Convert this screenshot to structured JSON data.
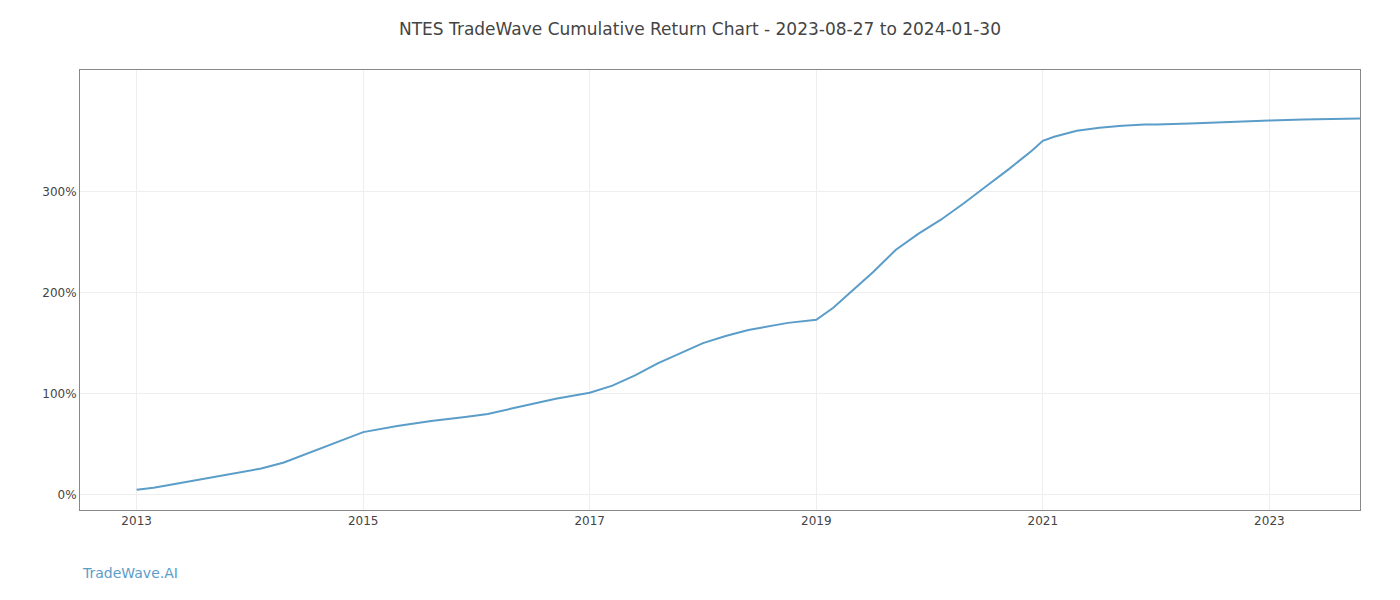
{
  "chart_data": {
    "type": "line",
    "title": "NTES TradeWave Cumulative Return Chart - 2023-08-27 to 2024-01-30",
    "annotations": [
      "TradeWave.AI"
    ],
    "color": "#5b9dc9",
    "grid": true,
    "xlim": [
      2012.5,
      2023.8
    ],
    "xticks": [
      2013,
      2015,
      2017,
      2019,
      2021,
      2023
    ],
    "ylim": [
      -15,
      420
    ],
    "yticks": [
      {
        "value": 0,
        "label": "0%"
      },
      {
        "value": 100,
        "label": "100%"
      },
      {
        "value": 200,
        "label": "200%"
      },
      {
        "value": 300,
        "label": "300%"
      }
    ],
    "x": [
      2013.0,
      2013.15,
      2013.3,
      2013.5,
      2013.7,
      2013.9,
      2014.1,
      2014.3,
      2014.6,
      2014.9,
      2015.0,
      2015.3,
      2015.6,
      2015.9,
      2016.1,
      2016.3,
      2016.5,
      2016.7,
      2016.9,
      2017.0,
      2017.2,
      2017.4,
      2017.6,
      2017.8,
      2018.0,
      2018.2,
      2018.4,
      2018.5,
      2018.6,
      2018.75,
      2019.0,
      2019.15,
      2019.3,
      2019.5,
      2019.7,
      2019.9,
      2020.1,
      2020.3,
      2020.5,
      2020.7,
      2020.9,
      2021.0,
      2021.1,
      2021.2,
      2021.3,
      2021.5,
      2021.7,
      2021.9,
      2022.0,
      2022.3,
      2022.5,
      2022.7,
      2022.9,
      2023.0,
      2023.3,
      2023.6,
      2023.8
    ],
    "values": [
      5,
      7,
      10,
      14,
      18,
      22,
      26,
      32,
      45,
      58,
      62,
      68,
      73,
      77,
      80,
      85,
      90,
      95,
      99,
      101,
      108,
      118,
      130,
      140,
      150,
      157,
      163,
      165,
      167,
      170,
      173,
      185,
      200,
      220,
      242,
      258,
      272,
      288,
      305,
      322,
      340,
      350,
      354,
      357,
      360,
      363,
      365,
      366,
      366,
      367,
      368,
      369,
      370,
      370,
      371,
      372,
      372
    ]
  }
}
